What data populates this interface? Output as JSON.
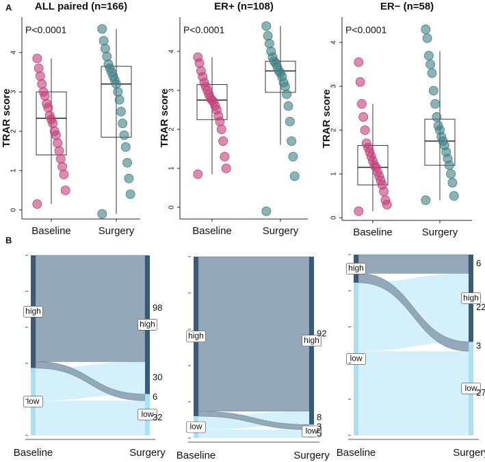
{
  "panel_labels": [
    "A",
    "B"
  ],
  "chart_data": [
    {
      "type": "box",
      "title": "ALL paired (n=166)",
      "annotation": "P<0.0001",
      "y_label": "TRAR score",
      "categories": [
        "Baseline",
        "Surgery"
      ],
      "ylim": [
        -0.23,
        4.9
      ],
      "yticks": [
        0,
        1,
        2,
        3,
        4
      ],
      "boxes": [
        {
          "color": "#c2407a",
          "whisker_low": 0.15,
          "q1": 1.4,
          "median": 2.33,
          "q3": 3.0,
          "whisker_high": 3.85,
          "points": [
            0.15,
            0.5,
            0.9,
            1.1,
            1.3,
            1.5,
            1.7,
            1.9,
            2.0,
            2.2,
            2.3,
            2.4,
            2.6,
            2.7,
            2.9,
            3.0,
            3.2,
            3.4,
            3.6,
            3.85
          ]
        },
        {
          "color": "#3f7f84",
          "whisker_low": -0.1,
          "q1": 1.85,
          "median": 3.2,
          "q3": 3.65,
          "whisker_high": 4.6,
          "points": [
            -0.1,
            0.4,
            0.8,
            1.2,
            1.6,
            1.9,
            2.2,
            2.5,
            2.8,
            3.0,
            3.2,
            3.3,
            3.4,
            3.5,
            3.6,
            3.7,
            3.9,
            4.1,
            4.3,
            4.6
          ]
        }
      ]
    },
    {
      "type": "box",
      "title": "ER+ (n=108)",
      "annotation": "P<0.0001",
      "y_label": "TRAR score",
      "categories": [
        "Baseline",
        "Surgery"
      ],
      "ylim": [
        -0.3,
        4.88
      ],
      "yticks": [
        0,
        1,
        2,
        3,
        4
      ],
      "boxes": [
        {
          "color": "#c2407a",
          "whisker_low": 0.85,
          "q1": 2.25,
          "median": 2.75,
          "q3": 3.15,
          "whisker_high": 3.85,
          "points": [
            0.85,
            1.0,
            1.3,
            1.7,
            2.0,
            2.2,
            2.35,
            2.5,
            2.6,
            2.7,
            2.75,
            2.8,
            2.9,
            3.0,
            3.1,
            3.2,
            3.35,
            3.5,
            3.7,
            3.85
          ]
        },
        {
          "color": "#3f7f84",
          "whisker_low": 1.6,
          "q1": 2.95,
          "median": 3.5,
          "q3": 3.75,
          "whisker_high": 4.65,
          "points": [
            -0.1,
            0.8,
            1.3,
            1.7,
            2.2,
            2.6,
            2.9,
            3.1,
            3.2,
            3.35,
            3.45,
            3.5,
            3.6,
            3.7,
            3.75,
            3.85,
            4.0,
            4.2,
            4.4,
            4.65
          ]
        }
      ]
    },
    {
      "type": "box",
      "title": "ER− (n=58)",
      "annotation": "P<0.0001",
      "y_label": "TRAR score",
      "categories": [
        "Baseline",
        "Surgery"
      ],
      "ylim": [
        -0.06,
        4.58
      ],
      "yticks": [
        0,
        1,
        2,
        3,
        4
      ],
      "boxes": [
        {
          "color": "#c2407a",
          "whisker_low": 0.15,
          "q1": 0.75,
          "median": 1.15,
          "q3": 1.65,
          "whisker_high": 2.6,
          "points": [
            0.15,
            0.3,
            0.4,
            0.6,
            0.75,
            0.85,
            0.95,
            1.05,
            1.15,
            1.2,
            1.3,
            1.4,
            1.5,
            1.6,
            1.7,
            2.0,
            2.3,
            2.6,
            3.1,
            3.55
          ]
        },
        {
          "color": "#3f7f84",
          "whisker_low": 0.4,
          "q1": 1.2,
          "median": 1.75,
          "q3": 2.25,
          "whisker_high": 3.8,
          "points": [
            0.4,
            0.5,
            0.8,
            1.0,
            1.2,
            1.35,
            1.5,
            1.65,
            1.75,
            1.85,
            2.0,
            2.1,
            2.3,
            2.6,
            2.9,
            3.3,
            3.5,
            3.7,
            4.1,
            4.3
          ]
        }
      ]
    },
    {
      "type": "alluvial",
      "axes": [
        "Baseline",
        "Surgery"
      ],
      "strata": [
        "high",
        "low"
      ],
      "flows": [
        [
          98,
          6
        ],
        [
          30,
          32
        ]
      ],
      "flow_colors": [
        "#8fa3b5",
        "#cdeefa"
      ],
      "stratum_colors": [
        "#3a5a78",
        "#a8e0f5"
      ]
    },
    {
      "type": "alluvial",
      "axes": [
        "Baseline",
        "Surgery"
      ],
      "strata": [
        "high",
        "low"
      ],
      "flows": [
        [
          92,
          3
        ],
        [
          8,
          5
        ]
      ],
      "flow_colors": [
        "#8fa3b5",
        "#cdeefa"
      ],
      "stratum_colors": [
        "#3a5a78",
        "#a8e0f5"
      ]
    },
    {
      "type": "alluvial",
      "axes": [
        "Baseline",
        "Surgery"
      ],
      "strata": [
        "high",
        "low"
      ],
      "flows": [
        [
          6,
          3
        ],
        [
          22,
          27
        ]
      ],
      "flow_colors": [
        "#8fa3b5",
        "#cdeefa"
      ],
      "stratum_colors": [
        "#3a5a78",
        "#a8e0f5"
      ]
    }
  ]
}
